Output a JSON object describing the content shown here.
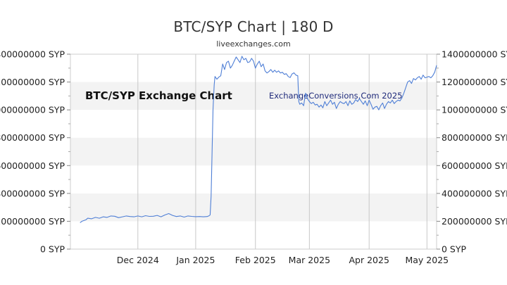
{
  "chart_data": {
    "type": "line",
    "title": "BTC/SYP Chart | 180 D",
    "subtitle": "liveexchanges.com",
    "xlabel": "",
    "ylabel": "",
    "ylim": [
      0,
      1400000000
    ],
    "y_ticks": [
      0,
      200000000,
      400000000,
      600000000,
      800000000,
      1000000000,
      1200000000,
      1400000000
    ],
    "y_tick_labels": [
      "0 SYP",
      "200000000 SYP",
      "400000000 SYP",
      "600000000 SYP",
      "800000000 SYP",
      "1000000000 SYP",
      "1200000000 SYP",
      "1400000000 SYP"
    ],
    "y_axis_both_sides": true,
    "x_tick_labels": [
      {
        "label": "Dec 2024",
        "day": 35
      },
      {
        "label": "Jan 2025",
        "day": 65
      },
      {
        "label": "Feb 2025",
        "day": 96
      },
      {
        "label": "Mar 2025",
        "day": 124
      },
      {
        "label": "Apr 2025",
        "day": 155
      },
      {
        "label": "May 2025",
        "day": 185
      }
    ],
    "xlim": [
      0,
      190
    ],
    "grid": "vertical lines at month starts, alternating horizontal bands",
    "watermarks": [
      "BTC/SYP Exchange Chart",
      "ExchangeConversions.Com 2025"
    ],
    "series": [
      {
        "color": "#4f7fd6",
        "points": [
          [
            5,
            190000000
          ],
          [
            6,
            200000000
          ],
          [
            8,
            210000000
          ],
          [
            9,
            222000000
          ],
          [
            11,
            218000000
          ],
          [
            13,
            228000000
          ],
          [
            15,
            222000000
          ],
          [
            17,
            232000000
          ],
          [
            19,
            228000000
          ],
          [
            21,
            238000000
          ],
          [
            23,
            236000000
          ],
          [
            25,
            226000000
          ],
          [
            27,
            232000000
          ],
          [
            29,
            238000000
          ],
          [
            31,
            234000000
          ],
          [
            33,
            232000000
          ],
          [
            35,
            238000000
          ],
          [
            37,
            232000000
          ],
          [
            39,
            240000000
          ],
          [
            41,
            235000000
          ],
          [
            43,
            236000000
          ],
          [
            45,
            242000000
          ],
          [
            47,
            232000000
          ],
          [
            49,
            245000000
          ],
          [
            51,
            255000000
          ],
          [
            53,
            242000000
          ],
          [
            55,
            234000000
          ],
          [
            57,
            238000000
          ],
          [
            59,
            230000000
          ],
          [
            61,
            238000000
          ],
          [
            63,
            235000000
          ],
          [
            65,
            233000000
          ],
          [
            67,
            234000000
          ],
          [
            69,
            232000000
          ],
          [
            71,
            234000000
          ],
          [
            72,
            240000000
          ],
          [
            72.5,
            245000000
          ],
          [
            73,
            380000000
          ],
          [
            73.5,
            700000000
          ],
          [
            74,
            1000000000
          ],
          [
            74.3,
            1090000000
          ],
          [
            74.6,
            1180000000
          ],
          [
            75,
            1240000000
          ],
          [
            76,
            1220000000
          ],
          [
            77,
            1235000000
          ],
          [
            78,
            1245000000
          ],
          [
            79,
            1330000000
          ],
          [
            80,
            1290000000
          ],
          [
            81,
            1340000000
          ],
          [
            82,
            1350000000
          ],
          [
            83,
            1300000000
          ],
          [
            84,
            1320000000
          ],
          [
            85,
            1350000000
          ],
          [
            86,
            1380000000
          ],
          [
            87,
            1360000000
          ],
          [
            88,
            1340000000
          ],
          [
            89,
            1385000000
          ],
          [
            90,
            1360000000
          ],
          [
            91,
            1370000000
          ],
          [
            92,
            1340000000
          ],
          [
            93,
            1345000000
          ],
          [
            94,
            1370000000
          ],
          [
            95,
            1350000000
          ],
          [
            96,
            1300000000
          ],
          [
            97,
            1330000000
          ],
          [
            98,
            1350000000
          ],
          [
            99,
            1310000000
          ],
          [
            100,
            1330000000
          ],
          [
            101,
            1280000000
          ],
          [
            102,
            1265000000
          ],
          [
            103,
            1275000000
          ],
          [
            104,
            1290000000
          ],
          [
            105,
            1270000000
          ],
          [
            106,
            1285000000
          ],
          [
            107,
            1270000000
          ],
          [
            108,
            1280000000
          ],
          [
            109,
            1265000000
          ],
          [
            110,
            1270000000
          ],
          [
            111,
            1255000000
          ],
          [
            112,
            1260000000
          ],
          [
            113,
            1240000000
          ],
          [
            114,
            1232000000
          ],
          [
            115,
            1258000000
          ],
          [
            116,
            1266000000
          ],
          [
            117,
            1250000000
          ],
          [
            118,
            1245000000
          ],
          [
            118.5,
            1060000000
          ],
          [
            119,
            1040000000
          ],
          [
            120,
            1050000000
          ],
          [
            121,
            1030000000
          ],
          [
            122,
            1120000000
          ],
          [
            123,
            1080000000
          ],
          [
            124,
            1060000000
          ],
          [
            125,
            1045000000
          ],
          [
            126,
            1055000000
          ],
          [
            127,
            1035000000
          ],
          [
            128,
            1040000000
          ],
          [
            129,
            1020000000
          ],
          [
            130,
            1035000000
          ],
          [
            131,
            1015000000
          ],
          [
            132,
            1060000000
          ],
          [
            133,
            1030000000
          ],
          [
            134,
            1050000000
          ],
          [
            135,
            1070000000
          ],
          [
            136,
            1040000000
          ],
          [
            137,
            1055000000
          ],
          [
            138,
            1010000000
          ],
          [
            139,
            1040000000
          ],
          [
            140,
            1060000000
          ],
          [
            141,
            1050000000
          ],
          [
            142,
            1045000000
          ],
          [
            143,
            1060000000
          ],
          [
            144,
            1030000000
          ],
          [
            145,
            1065000000
          ],
          [
            146,
            1040000000
          ],
          [
            147,
            1050000000
          ],
          [
            148,
            1075000000
          ],
          [
            149,
            1060000000
          ],
          [
            150,
            1080000000
          ],
          [
            151,
            1060000000
          ],
          [
            152,
            1040000000
          ],
          [
            153,
            1065000000
          ],
          [
            154,
            1030000000
          ],
          [
            155,
            1070000000
          ],
          [
            156,
            1040000000
          ],
          [
            157,
            1005000000
          ],
          [
            158,
            1020000000
          ],
          [
            159,
            1025000000
          ],
          [
            160,
            1000000000
          ],
          [
            161,
            1030000000
          ],
          [
            162,
            1050000000
          ],
          [
            163,
            1010000000
          ],
          [
            164,
            1040000000
          ],
          [
            165,
            1060000000
          ],
          [
            166,
            1050000000
          ],
          [
            167,
            1070000000
          ],
          [
            168,
            1045000000
          ],
          [
            169,
            1060000000
          ],
          [
            170,
            1070000000
          ],
          [
            171,
            1065000000
          ],
          [
            172,
            1085000000
          ],
          [
            173,
            1120000000
          ],
          [
            174,
            1160000000
          ],
          [
            175,
            1200000000
          ],
          [
            176,
            1210000000
          ],
          [
            177,
            1190000000
          ],
          [
            178,
            1225000000
          ],
          [
            179,
            1215000000
          ],
          [
            180,
            1230000000
          ],
          [
            181,
            1240000000
          ],
          [
            182,
            1220000000
          ],
          [
            183,
            1250000000
          ],
          [
            184,
            1230000000
          ],
          [
            185,
            1235000000
          ],
          [
            186,
            1240000000
          ],
          [
            187,
            1230000000
          ],
          [
            188,
            1245000000
          ],
          [
            189,
            1270000000
          ],
          [
            190,
            1320000000
          ]
        ]
      }
    ]
  }
}
